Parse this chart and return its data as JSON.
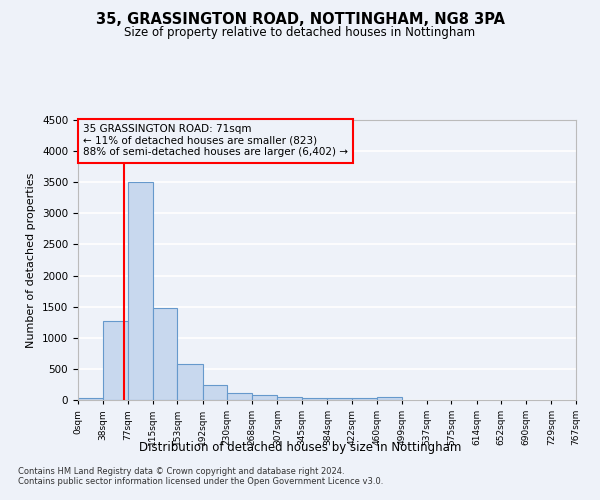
{
  "title1": "35, GRASSINGTON ROAD, NOTTINGHAM, NG8 3PA",
  "title2": "Size of property relative to detached houses in Nottingham",
  "xlabel": "Distribution of detached houses by size in Nottingham",
  "ylabel": "Number of detached properties",
  "annotation_line1": "35 GRASSINGTON ROAD: 71sqm",
  "annotation_line2": "← 11% of detached houses are smaller (823)",
  "annotation_line3": "88% of semi-detached houses are larger (6,402) →",
  "footer1": "Contains HM Land Registry data © Crown copyright and database right 2024.",
  "footer2": "Contains public sector information licensed under the Open Government Licence v3.0.",
  "bar_color": "#c8d8ee",
  "bar_edge_color": "#6699cc",
  "red_line_x": 71,
  "bin_edges": [
    0,
    38,
    77,
    115,
    153,
    192,
    230,
    268,
    307,
    345,
    384,
    422,
    460,
    499,
    537,
    575,
    614,
    652,
    690,
    729,
    767
  ],
  "bar_heights": [
    40,
    1270,
    3500,
    1480,
    580,
    240,
    115,
    85,
    55,
    40,
    40,
    35,
    50,
    5,
    5,
    5,
    5,
    5,
    5,
    5
  ],
  "ylim": [
    0,
    4500
  ],
  "yticks": [
    0,
    500,
    1000,
    1500,
    2000,
    2500,
    3000,
    3500,
    4000,
    4500
  ],
  "background_color": "#eef2f9",
  "grid_color": "#ffffff"
}
